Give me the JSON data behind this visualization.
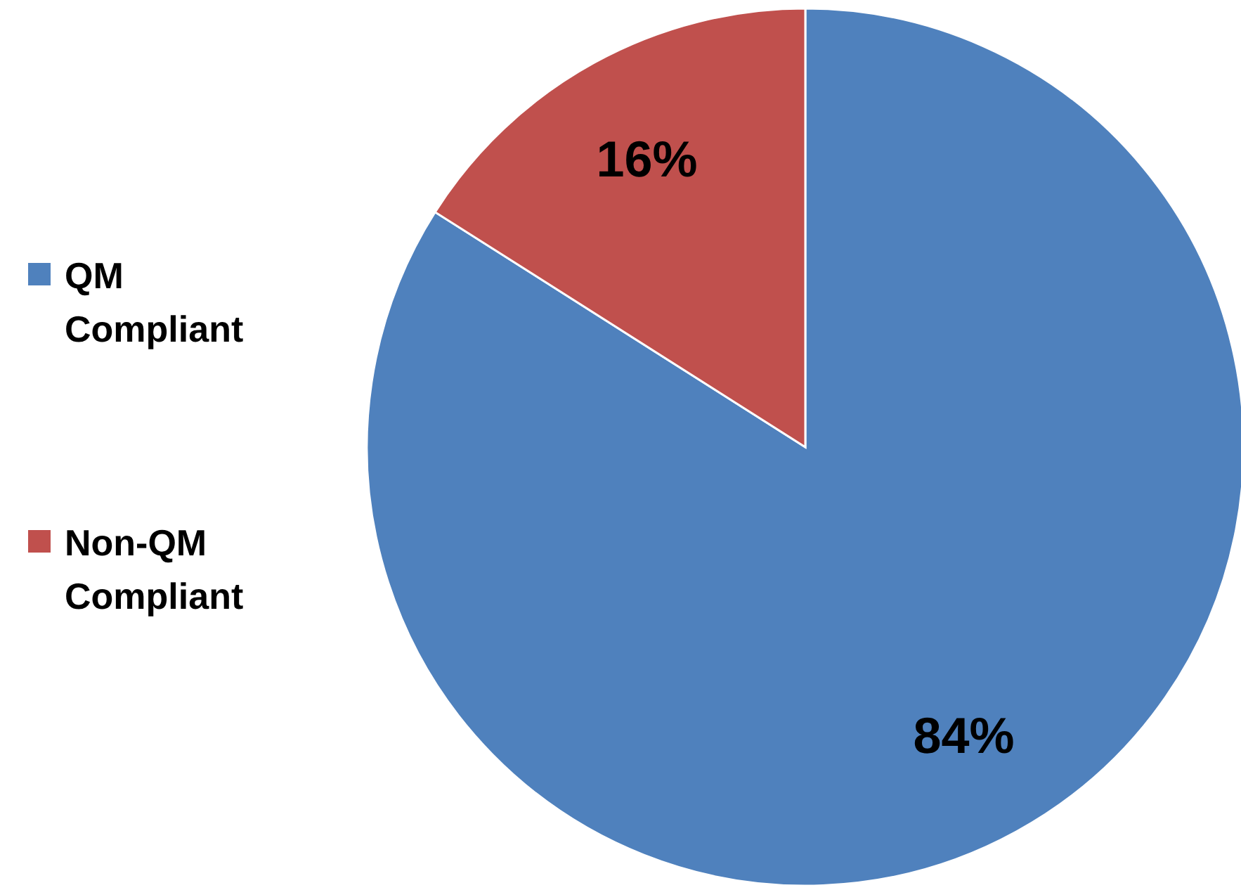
{
  "chart_data": {
    "type": "pie",
    "categories": [
      "QM Compliant",
      "Non-QM Compliant"
    ],
    "values": [
      84,
      16
    ],
    "colors": [
      "#4f81bd",
      "#c0504d"
    ],
    "value_labels": [
      "84%",
      "16%"
    ],
    "legend": "left"
  }
}
